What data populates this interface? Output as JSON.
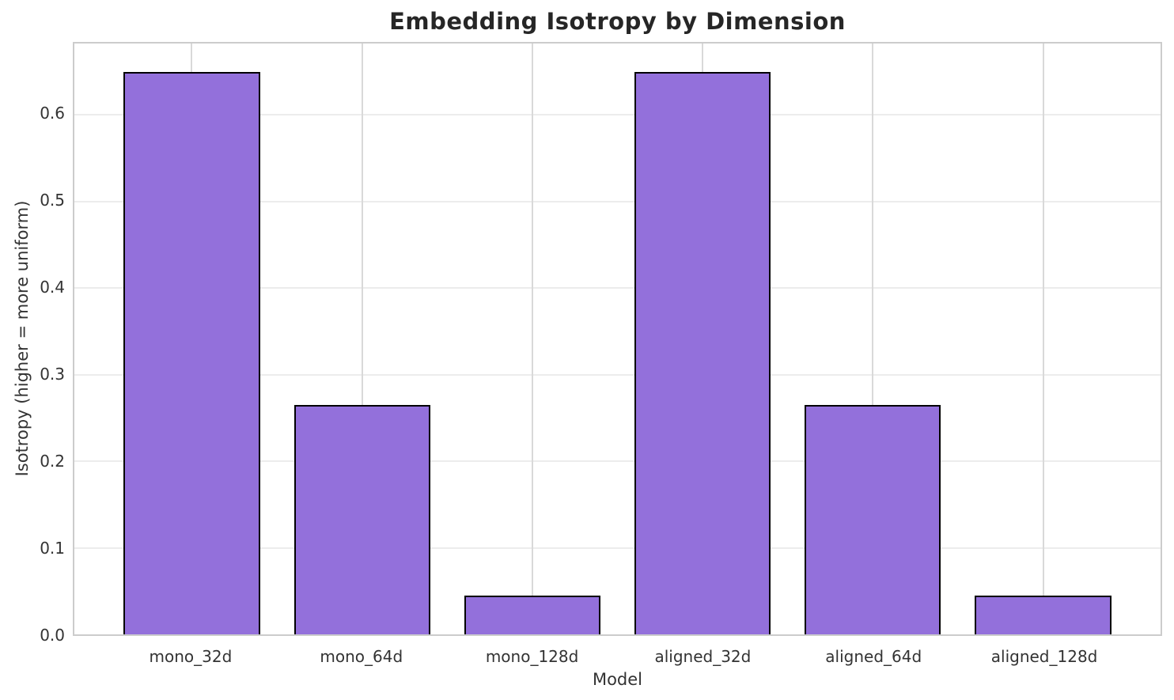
{
  "chart_data": {
    "type": "bar",
    "title": "Embedding Isotropy by Dimension",
    "xlabel": "Model",
    "ylabel": "Isotropy (higher = more uniform)",
    "categories": [
      "mono_32d",
      "mono_64d",
      "mono_128d",
      "aligned_32d",
      "aligned_64d",
      "aligned_128d"
    ],
    "values": [
      0.65,
      0.265,
      0.045,
      0.65,
      0.265,
      0.045
    ],
    "ylim": [
      0,
      0.6825
    ],
    "yticks": [
      0.0,
      0.1,
      0.2,
      0.3,
      0.4,
      0.5,
      0.6
    ],
    "ytick_labels": [
      "0.0",
      "0.1",
      "0.2",
      "0.3",
      "0.4",
      "0.5",
      "0.6"
    ],
    "grid": true,
    "legend": "none",
    "colors": {
      "bar_fill": "#9370DB",
      "bar_edge": "#000000",
      "vertical_grid": "#d9d9d9",
      "horizontal_grid": "#ececec",
      "spine": "#cccccc",
      "title_text": "#262626",
      "tick_text": "#333333"
    },
    "bar_width_data_units": 0.8,
    "x_margin_data_units": 0.69
  }
}
